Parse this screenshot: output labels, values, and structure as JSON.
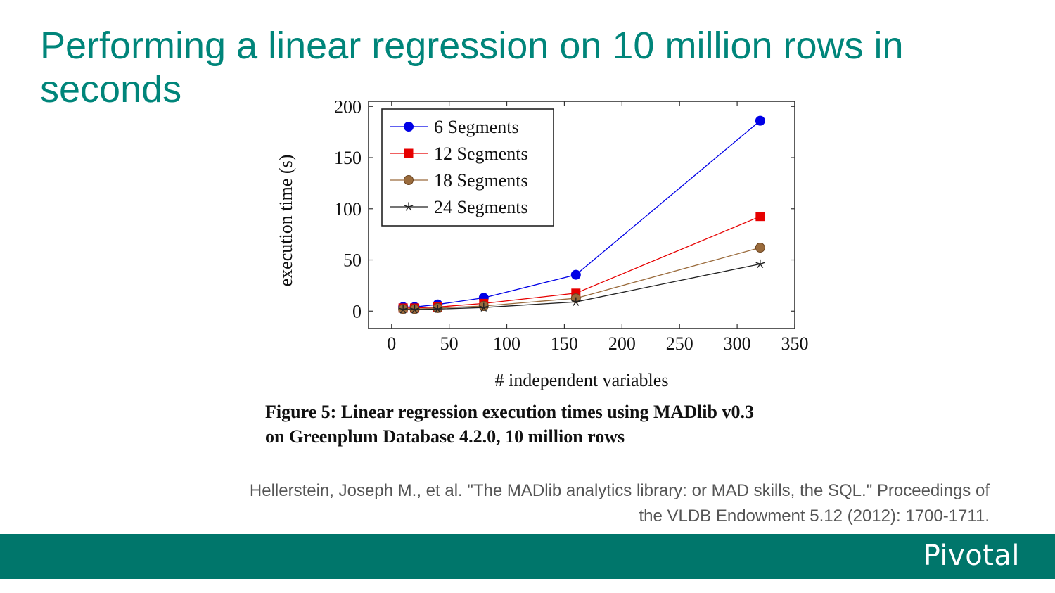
{
  "slide": {
    "title": "Performing a linear regression on 10 million rows in seconds",
    "caption_line1": "Figure 5: Linear regression execution times using MADlib v0.3",
    "caption_line2": "on Greenplum Database 4.2.0, 10 million rows",
    "citation_line1": "Hellerstein, Joseph M., et al. \"The MADlib analytics library: or MAD skills, the SQL.\" Proceedings of",
    "citation_line2": "the VLDB Endowment 5.12 (2012): 1700-1711.",
    "logo": "Pivotal",
    "colors": {
      "title": "#00857a",
      "footer": "#00766b"
    }
  },
  "chart_data": {
    "type": "line",
    "xlabel": "# independent variables",
    "ylabel": "execution time (s)",
    "xlim": [
      -20,
      350
    ],
    "ylim": [
      -17,
      205
    ],
    "xticks": [
      0,
      50,
      100,
      150,
      200,
      250,
      300,
      350
    ],
    "yticks": [
      0,
      50,
      100,
      150,
      200
    ],
    "x": [
      10,
      20,
      40,
      80,
      160,
      320
    ],
    "legend_position": "top-left",
    "grid": false,
    "series": [
      {
        "name": "6 Segments",
        "color": "#0000e6",
        "marker": "circle",
        "values": [
          4,
          4,
          6.5,
          13,
          35.5,
          186
        ]
      },
      {
        "name": "12 Segments",
        "color": "#e60000",
        "marker": "square",
        "values": [
          3,
          3,
          4,
          7.5,
          17.5,
          92.5
        ]
      },
      {
        "name": "18 Segments",
        "color": "#9a6b3c",
        "marker": "circle",
        "values": [
          2,
          2,
          3,
          5,
          12.5,
          62
        ]
      },
      {
        "name": "24 Segments",
        "color": "#222222",
        "marker": "star",
        "values": [
          1.5,
          1.5,
          2,
          3.5,
          9,
          46
        ]
      }
    ]
  }
}
